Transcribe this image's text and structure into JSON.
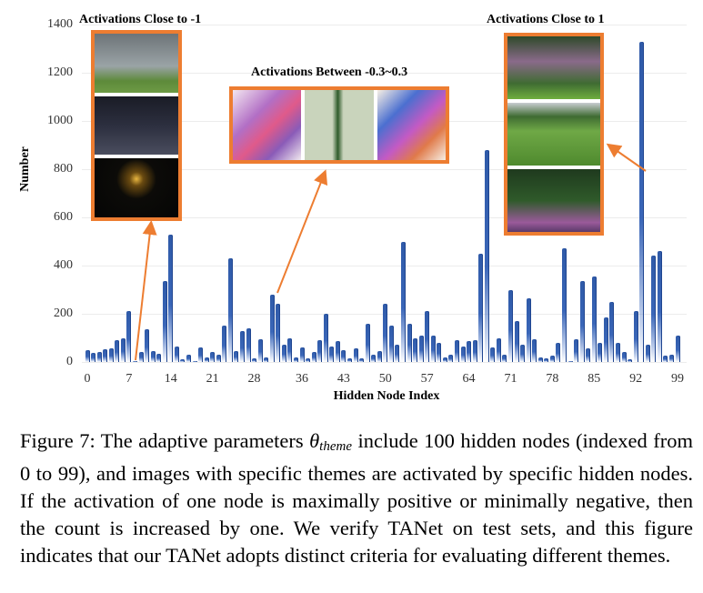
{
  "chart_data": {
    "type": "bar",
    "title": "",
    "xlabel": "Hidden Node Index",
    "ylabel": "Number",
    "ylim": [
      0,
      1400
    ],
    "yticks": [
      0,
      200,
      400,
      600,
      800,
      1000,
      1200,
      1400
    ],
    "xticks": [
      0,
      7,
      14,
      21,
      28,
      36,
      43,
      50,
      57,
      64,
      71,
      78,
      85,
      92,
      99
    ],
    "grid": true,
    "legend": null,
    "bar_color": "#2f5aa8",
    "categories": [
      0,
      1,
      2,
      3,
      4,
      5,
      6,
      7,
      8,
      9,
      10,
      11,
      12,
      13,
      14,
      15,
      16,
      17,
      18,
      19,
      20,
      21,
      22,
      23,
      24,
      25,
      26,
      27,
      28,
      29,
      30,
      31,
      32,
      33,
      34,
      35,
      36,
      37,
      38,
      39,
      40,
      41,
      42,
      43,
      44,
      45,
      46,
      47,
      48,
      49,
      50,
      51,
      52,
      53,
      54,
      55,
      56,
      57,
      58,
      59,
      60,
      61,
      62,
      63,
      64,
      65,
      66,
      67,
      68,
      69,
      70,
      71,
      72,
      73,
      74,
      75,
      76,
      77,
      78,
      79,
      80,
      81,
      82,
      83,
      84,
      85,
      86,
      87,
      88,
      89,
      90,
      91,
      92,
      93,
      94,
      95,
      96,
      97,
      98,
      99
    ],
    "values": [
      50,
      38,
      42,
      52,
      58,
      90,
      100,
      210,
      5,
      40,
      135,
      45,
      35,
      335,
      530,
      65,
      10,
      30,
      5,
      60,
      20,
      40,
      30,
      150,
      430,
      45,
      130,
      140,
      15,
      95,
      20,
      280,
      240,
      70,
      100,
      20,
      60,
      15,
      40,
      90,
      200,
      65,
      85,
      50,
      15,
      55,
      15,
      160,
      30,
      45,
      240,
      150,
      70,
      500,
      160,
      100,
      110,
      210,
      110,
      80,
      20,
      30,
      90,
      65,
      85,
      90,
      450,
      880,
      60,
      100,
      30,
      300,
      170,
      70,
      265,
      95,
      20,
      15,
      25,
      80,
      470,
      5,
      95,
      335,
      55,
      355,
      80,
      185,
      250,
      80,
      40,
      10,
      210,
      1330,
      70,
      440,
      460,
      25,
      30,
      110
    ],
    "annotations": [
      {
        "text": "Activations Close to -1",
        "points_to_index": 8,
        "images": [
          "building-with-lawn",
          "house-at-night-snow",
          "street-lights-at-night"
        ]
      },
      {
        "text": "Activations Between -0.3~0.3",
        "points_to_index": 31,
        "images": [
          "purple-ink-sketch",
          "green-calligraphy",
          "watercolor-typography"
        ]
      },
      {
        "text": "Activations Close to 1",
        "points_to_index": 93,
        "images": [
          "garden-tree",
          "grass-field-skyline",
          "flower-garden"
        ]
      }
    ]
  },
  "caption": {
    "prefix": "Figure 7: The adaptive parameters ",
    "symbol": "θ",
    "subscript": "theme",
    "suffix": " include 100 hidden nodes (indexed from 0 to 99), and images with specific themes are activated by specific hidden nodes. If the activation of one node is maximally positive or minimally negative, then the count is increased by one. We verify TANet on test sets, and this figure indicates that our TANet adopts distinct criteria for evaluating different themes."
  },
  "colors": {
    "accent_orange": "#ed7d31",
    "bar_blue": "#2f5aa8"
  }
}
